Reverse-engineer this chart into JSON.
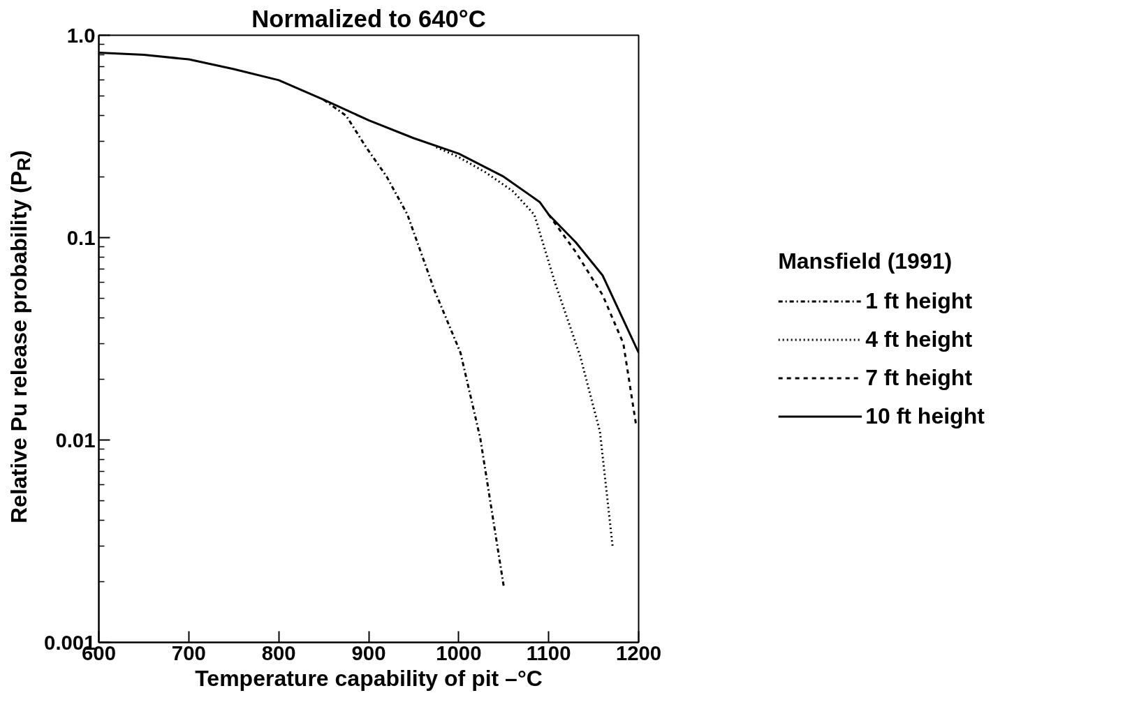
{
  "chart_data": {
    "type": "line",
    "title": "Normalized to 640°C",
    "xlabel": "Temperature capability of pit –°C",
    "ylabel": "Relative Pu release probability (P$_{R}$)",
    "legend_title": "Mansfield (1991)",
    "legend": "right",
    "grid": false,
    "log": "y",
    "xlim": [
      600,
      1200
    ],
    "xticks": [
      600,
      700,
      800,
      900,
      1000,
      1100,
      1200
    ],
    "ylim": [
      0.001,
      1.0
    ],
    "yticks": [
      0.001,
      0.01,
      0.1,
      {
        "value": 1.0,
        "label": "1.0"
      }
    ],
    "series": [
      {
        "name": "1 ft height",
        "color": "#000000",
        "line_style": "dashdot",
        "x": [
          850,
          875,
          897,
          920,
          943,
          973,
          1002,
          1024,
          1050
        ],
        "values": [
          0.48,
          0.4,
          0.28,
          0.2,
          0.13,
          0.055,
          0.027,
          0.0102,
          0.0019
        ]
      },
      {
        "name": "4 ft height",
        "color": "#000000",
        "line_style": "dotted",
        "x": [
          975,
          1000,
          1030,
          1060,
          1084,
          1107,
          1135,
          1157,
          1171
        ],
        "values": [
          0.28,
          0.25,
          0.21,
          0.17,
          0.13,
          0.06,
          0.026,
          0.011,
          0.003
        ]
      },
      {
        "name": "7 ft height",
        "color": "#000000",
        "line_style": "dashed",
        "x": [
          1100,
          1130,
          1160,
          1183,
          1197
        ],
        "values": [
          0.13,
          0.085,
          0.052,
          0.03,
          0.012
        ]
      },
      {
        "name": "10 ft height",
        "color": "#000000",
        "line_style": "solid",
        "x": [
          600,
          650,
          700,
          750,
          800,
          850,
          900,
          950,
          1000,
          1050,
          1090,
          1100,
          1130,
          1160,
          1200
        ],
        "values": [
          0.82,
          0.8,
          0.76,
          0.68,
          0.6,
          0.48,
          0.38,
          0.31,
          0.26,
          0.2,
          0.15,
          0.13,
          0.095,
          0.065,
          0.027
        ]
      }
    ]
  }
}
